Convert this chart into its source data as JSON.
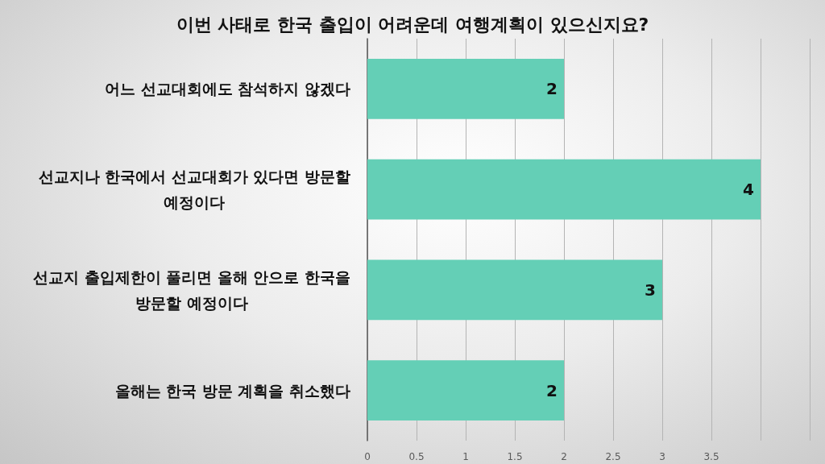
{
  "chart_data": {
    "type": "bar",
    "orientation": "horizontal",
    "title": "이번 사태로 한국 출입이 어려운데 여행계획이 있으신지요?",
    "categories": [
      "어느 선교대회에도 참석하지 않겠다",
      "선교지나 한국에서 선교대회가 있다면 방문할 예정이다",
      "선교지 출입제한이 풀리면 올해 안으로 한국을 방문할 예정이다",
      "올해는 한국 방문 계획을 취소했다"
    ],
    "values": [
      2,
      4,
      3,
      2
    ],
    "color": "#64cfb6",
    "data_labels": true,
    "xlim": [
      0,
      4.5
    ],
    "xticks": [
      0,
      0.5,
      1,
      1.5,
      2,
      2.5,
      3,
      3.5,
      {
        "value": 4,
        "label": null
      },
      {
        "value": 4.5,
        "label": null
      }
    ],
    "grid": "x"
  }
}
